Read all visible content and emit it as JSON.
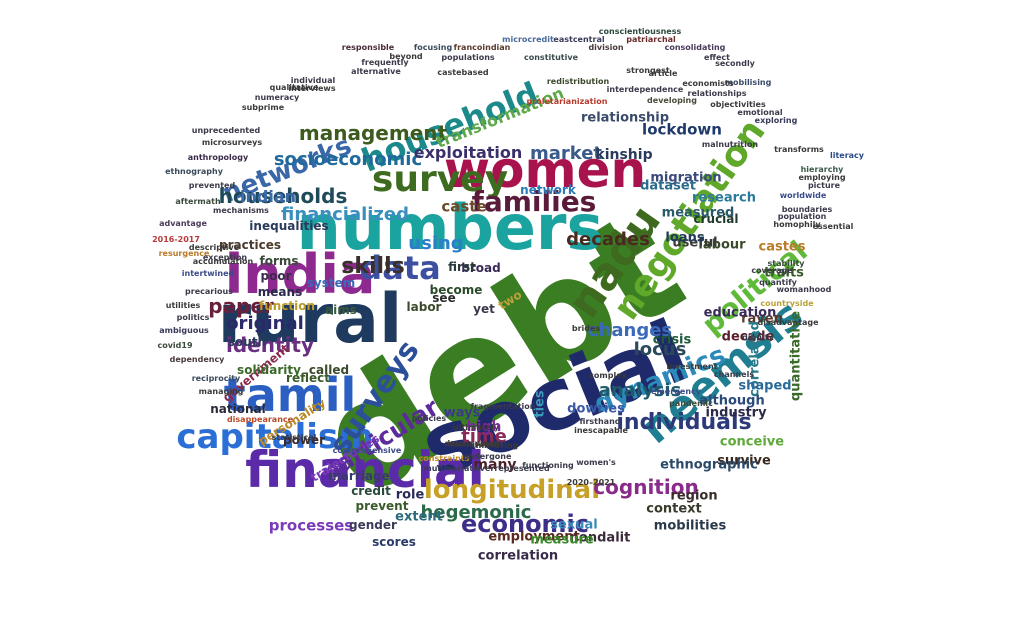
{
  "words": [
    {
      "t": "debt",
      "c": "#3b7d23"
    },
    {
      "t": "social",
      "c": "#1f2a6b"
    },
    {
      "t": "financial",
      "c": "#5b2aa8"
    },
    {
      "t": "numbers",
      "c": "#1ba3a0"
    },
    {
      "t": "women",
      "c": "#a8124d"
    },
    {
      "t": "rural",
      "c": "#1e3a5f"
    },
    {
      "t": "india",
      "c": "#8e2a8f"
    },
    {
      "t": "tamil",
      "c": "#2c5fc2"
    },
    {
      "t": "household",
      "c": "#1c8a8a"
    },
    {
      "t": "negotiation",
      "c": "#5fa82a"
    },
    {
      "t": "neemsis",
      "c": "#1f7e91"
    },
    {
      "t": "survey",
      "c": "#3d6b1f"
    },
    {
      "t": "capitalism",
      "c": "#2b6fd6"
    },
    {
      "t": "surveys",
      "c": "#2c4f9a"
    },
    {
      "t": "nadu",
      "c": "#3d6a1f"
    },
    {
      "t": "data",
      "c": "#3c4fa0"
    },
    {
      "t": "political",
      "c": "#5fba3a"
    },
    {
      "t": "longitudinal",
      "c": "#c7a127"
    },
    {
      "t": "dynamics",
      "c": "#2b8ab9"
    },
    {
      "t": "particular",
      "c": "#5b2a9b"
    },
    {
      "t": "networks",
      "c": "#3a67a8"
    },
    {
      "t": "families",
      "c": "#5a1a3a"
    },
    {
      "t": "economic",
      "c": "#3d2e88"
    },
    {
      "t": "management",
      "c": "#3d5b1f"
    },
    {
      "t": "skills",
      "c": "#3a2f2a"
    },
    {
      "t": "identity",
      "c": "#6a2f80"
    },
    {
      "t": "individuals",
      "c": "#2c3a7a"
    },
    {
      "t": "financialized",
      "c": "#3a8fbf"
    },
    {
      "t": "socioeconomic",
      "c": "#1f6a9b"
    },
    {
      "t": "households",
      "c": "#1f4a5a"
    },
    {
      "t": "cognition",
      "c": "#8a2a8a"
    },
    {
      "t": "hegemonic",
      "c": "#2a6a4a"
    },
    {
      "t": "paper",
      "c": "#6a1f3a"
    },
    {
      "t": "original",
      "c": "#2a2a6a"
    },
    {
      "t": "analysis",
      "c": "#1f5a6a"
    },
    {
      "t": "changes",
      "c": "#3a6ab9"
    },
    {
      "t": "decades",
      "c": "#4a2a1f"
    },
    {
      "t": "market",
      "c": "#3a5a8a"
    },
    {
      "t": "using",
      "c": "#2b7fc9"
    },
    {
      "t": "indian",
      "c": "#3a6aa8"
    },
    {
      "t": "exploitation",
      "c": "#3a2f6a"
    },
    {
      "t": "transformation",
      "c": "#5fa84a"
    },
    {
      "t": "lockdown",
      "c": "#1f3a6a"
    },
    {
      "t": "relationship",
      "c": "#3a4a6a"
    },
    {
      "t": "kinship",
      "c": "#2a3a5a"
    },
    {
      "t": "migration",
      "c": "#3a4a7a"
    },
    {
      "t": "dataset",
      "c": "#2a6a8a"
    },
    {
      "t": "research",
      "c": "#2a7a9a"
    },
    {
      "t": "measured",
      "c": "#2a5a6a"
    },
    {
      "t": "labour",
      "c": "#3a4a2a"
    },
    {
      "t": "crucial",
      "c": "#1f3a2a"
    },
    {
      "t": "useful",
      "c": "#3a3a3a"
    },
    {
      "t": "loans",
      "c": "#1f3a5a"
    },
    {
      "t": "caste",
      "c": "#6a4a2a"
    },
    {
      "t": "castes",
      "c": "#b97a2a"
    },
    {
      "t": "traits",
      "c": "#3a5a2a"
    },
    {
      "t": "raven",
      "c": "#5a3a2a"
    },
    {
      "t": "education",
      "c": "#3a2a5a"
    },
    {
      "t": "decade",
      "c": "#5a1f2a"
    },
    {
      "t": "crisis",
      "c": "#1f5a3a"
    },
    {
      "t": "locus",
      "c": "#2a4a5a"
    },
    {
      "t": "correlated",
      "c": "#2a7a8a"
    },
    {
      "t": "quantitative",
      "c": "#3a6a2a"
    },
    {
      "t": "shaped",
      "c": "#2a6a9a"
    },
    {
      "t": "industry",
      "c": "#2a2a4a"
    },
    {
      "t": "dowries",
      "c": "#3a5aa8"
    },
    {
      "t": "time",
      "c": "#8a2a5a"
    },
    {
      "t": "ties",
      "c": "#3a9ab9"
    },
    {
      "t": "high",
      "c": "#7a2a9a"
    },
    {
      "t": "ways",
      "c": "#3a3a8a"
    },
    {
      "t": "many",
      "c": "#4a1f2a"
    },
    {
      "t": "conceive",
      "c": "#5fa83a"
    },
    {
      "t": "survive",
      "c": "#3a2a1f"
    },
    {
      "t": "ethnographic",
      "c": "#2a4a6a"
    },
    {
      "t": "region",
      "c": "#3a2a2a"
    },
    {
      "t": "context",
      "c": "#3a3a2a"
    },
    {
      "t": "mobilities",
      "c": "#2a3a4a"
    },
    {
      "t": "nondalit",
      "c": "#3a2a3a"
    },
    {
      "t": "role",
      "c": "#2a2a5a"
    },
    {
      "t": "extent",
      "c": "#2a6a7a"
    },
    {
      "t": "processes",
      "c": "#7a3ab9"
    },
    {
      "t": "correlation",
      "c": "#3a2a4a"
    },
    {
      "t": "employment",
      "c": "#5a2a1f"
    },
    {
      "t": "measure",
      "c": "#3a8a2a"
    },
    {
      "t": "sexual",
      "c": "#3a8ab9"
    },
    {
      "t": "scores",
      "c": "#2a3a6a"
    },
    {
      "t": "gender",
      "c": "#3a3a5a"
    },
    {
      "t": "prevent",
      "c": "#3a5a2a"
    },
    {
      "t": "credit",
      "c": "#2a4a3a"
    },
    {
      "t": "trajectories",
      "c": "#7a3ab9"
    },
    {
      "t": "marriage",
      "c": "#3a3a6a"
    },
    {
      "t": "power",
      "c": "#3a2a2a"
    },
    {
      "t": "personality",
      "c": "#b9892a"
    },
    {
      "t": "national",
      "c": "#2a2a3a"
    },
    {
      "t": "government",
      "c": "#8a2a4a"
    },
    {
      "t": "reflect",
      "c": "#3a5a2a"
    },
    {
      "t": "called",
      "c": "#3a4a2a"
    },
    {
      "t": "solidarity",
      "c": "#3a6a2a"
    },
    {
      "t": "south",
      "c": "#2a3a5a"
    },
    {
      "t": "forms",
      "c": "#3a4a3a"
    },
    {
      "t": "poor",
      "c": "#3a2a4a"
    },
    {
      "t": "practices",
      "c": "#4a3a2a"
    },
    {
      "t": "inequalities",
      "c": "#2a3a5a"
    },
    {
      "t": "means",
      "c": "#2a2a4a"
    },
    {
      "t": "function",
      "c": "#b99a2a"
    },
    {
      "t": "system",
      "c": "#3a6ab9"
    },
    {
      "t": "aims",
      "c": "#3a5a3a"
    },
    {
      "t": "labor",
      "c": "#3a4a2a"
    },
    {
      "t": "become",
      "c": "#2a4a2a"
    },
    {
      "t": "broad",
      "c": "#3a2a5a"
    },
    {
      "t": "first",
      "c": "#2a3a3a"
    },
    {
      "t": "yet",
      "c": "#3a3a4a"
    },
    {
      "t": "see",
      "c": "#2a2a2a"
    },
    {
      "t": "two",
      "c": "#b9a23a"
    },
    {
      "t": "network",
      "c": "#2a7ab9"
    },
    {
      "t": "although",
      "c": "#2a4a7a"
    },
    {
      "t": "hierarchy",
      "c": "#3a5a4a"
    },
    {
      "t": "literacy",
      "c": "#2a4a8a"
    },
    {
      "t": "microcredit",
      "c": "#4a6a9a"
    },
    {
      "t": "conscientiousness",
      "c": "#2a4a3a"
    },
    {
      "t": "patriarchal",
      "c": "#6a2a2a"
    },
    {
      "t": "responsible",
      "c": "#4a2a3a"
    },
    {
      "t": "focusing",
      "c": "#3a4a5a"
    },
    {
      "t": "francoindian",
      "c": "#5a3a2a"
    },
    {
      "t": "eastcentral",
      "c": "#3a3a5a"
    },
    {
      "t": "division",
      "c": "#4a3a3a"
    },
    {
      "t": "constitutive",
      "c": "#3a4a4a"
    },
    {
      "t": "consolidating",
      "c": "#4a3a5a"
    },
    {
      "t": "proletarianization",
      "c": "#b93a2a"
    },
    {
      "t": "redistribution",
      "c": "#3a4a2a"
    },
    {
      "t": "interdependence",
      "c": "#3a3a4a"
    },
    {
      "t": "developing",
      "c": "#4a4a3a"
    },
    {
      "t": "mobilising",
      "c": "#3a4a6a"
    },
    {
      "t": "exploring",
      "c": "#3a3a5a"
    },
    {
      "t": "anthropology",
      "c": "#3a2a4a"
    },
    {
      "t": "ethnography",
      "c": "#3a4a5a"
    },
    {
      "t": "prevented",
      "c": "#3a3a4a"
    },
    {
      "t": "aftermath",
      "c": "#3a4a3a"
    },
    {
      "t": "advantage",
      "c": "#4a3a5a"
    },
    {
      "t": "2016-2017",
      "c": "#b93a3a"
    },
    {
      "t": "resurgence",
      "c": "#b97a2a"
    },
    {
      "t": "intertwined",
      "c": "#3a4a8a"
    },
    {
      "t": "precarious",
      "c": "#3a3a4a"
    },
    {
      "t": "utilities",
      "c": "#3a3a3a"
    },
    {
      "t": "politics",
      "c": "#3a3a4a"
    },
    {
      "t": "ambiguous",
      "c": "#3a3a5a"
    },
    {
      "t": "covid19",
      "c": "#3a4a3a"
    },
    {
      "t": "dependency",
      "c": "#4a3a3a"
    },
    {
      "t": "reciprocity",
      "c": "#3a4a5a"
    },
    {
      "t": "managing",
      "c": "#3a3a3a"
    },
    {
      "t": "disappearance",
      "c": "#b94a2a"
    },
    {
      "t": "statistical",
      "c": "#3a3a4a"
    },
    {
      "t": "comprehensive",
      "c": "#3a4a8a"
    },
    {
      "t": "overrepresented",
      "c": "#3a3a4a"
    },
    {
      "t": "constraints",
      "c": "#b98a2a"
    },
    {
      "t": "multivariate",
      "c": "#3a3a5a"
    },
    {
      "t": "2020–2021",
      "c": "#3a3a3a"
    },
    {
      "t": "women's",
      "c": "#3a3a4a"
    },
    {
      "t": "development",
      "c": "#4a3a3a"
    },
    {
      "t": "inescapable",
      "c": "#3a3a3a"
    },
    {
      "t": "firsthand",
      "c": "#3a3a4a"
    },
    {
      "t": "pandemic",
      "c": "#3a4a3a"
    },
    {
      "t": "emergency",
      "c": "#3a4a8a"
    },
    {
      "t": "channels",
      "c": "#3a3a4a"
    },
    {
      "t": "investment",
      "c": "#3a3a3a"
    },
    {
      "t": "countryside",
      "c": "#b9a23a"
    },
    {
      "t": "womanhood",
      "c": "#3a3a4a"
    },
    {
      "t": "disadvantage",
      "c": "#3a3a3a"
    },
    {
      "t": "quantify",
      "c": "#3a3a4a"
    },
    {
      "t": "stability",
      "c": "#3a4a3a"
    },
    {
      "t": "coverage",
      "c": "#3a3a4a"
    },
    {
      "t": "brides",
      "c": "#3a3a3a"
    },
    {
      "t": "dignity",
      "c": "#3a3a4a"
    },
    {
      "t": "complex",
      "c": "#3a3a3a"
    },
    {
      "t": "fragmentation",
      "c": "#3a3a4a"
    },
    {
      "t": "ultimately",
      "c": "#3a3a3a"
    },
    {
      "t": "policies",
      "c": "#3a3a4a"
    },
    {
      "t": "favourable",
      "c": "#3a3a3a"
    },
    {
      "t": "undergone",
      "c": "#3a3a4a"
    },
    {
      "t": "mirroring",
      "c": "#3a3a3a"
    },
    {
      "t": "functioning",
      "c": "#3a3a4a"
    },
    {
      "t": "homophily",
      "c": "#3a3a3a"
    },
    {
      "t": "malnutrition",
      "c": "#3a3a4a"
    },
    {
      "t": "transforms",
      "c": "#3a3a3a"
    },
    {
      "t": "worldwide",
      "c": "#3a4a8a"
    },
    {
      "t": "boundaries",
      "c": "#3a3a4a"
    },
    {
      "t": "essential",
      "c": "#3a3a3a"
    },
    {
      "t": "population",
      "c": "#3a3a4a"
    },
    {
      "t": "subprime",
      "c": "#3a3a3a"
    },
    {
      "t": "unprecedented",
      "c": "#3a3a4a"
    },
    {
      "t": "microsurveys",
      "c": "#3a3a3a"
    },
    {
      "t": "mechanisms",
      "c": "#3a3a4a"
    },
    {
      "t": "descriptive",
      "c": "#3a3a3a"
    },
    {
      "t": "exception",
      "c": "#3a3a4a"
    },
    {
      "t": "accumulation",
      "c": "#3a3a3a"
    },
    {
      "t": "individual",
      "c": "#3a3a4a"
    },
    {
      "t": "qualitative",
      "c": "#3a3a3a"
    },
    {
      "t": "numeracy",
      "c": "#3a3a4a"
    },
    {
      "t": "interviews",
      "c": "#3a3a3a"
    },
    {
      "t": "frequently",
      "c": "#3a3a4a"
    },
    {
      "t": "castebased",
      "c": "#3a3a3a"
    },
    {
      "t": "alternative",
      "c": "#3a3a4a"
    },
    {
      "t": "beyond",
      "c": "#3a3a3a"
    },
    {
      "t": "populations",
      "c": "#3a3a4a"
    },
    {
      "t": "objectivities",
      "c": "#3a3a3a"
    },
    {
      "t": "emotional",
      "c": "#3a3a4a"
    },
    {
      "t": "economists",
      "c": "#3a3a3a"
    },
    {
      "t": "secondly",
      "c": "#3a3a4a"
    },
    {
      "t": "article",
      "c": "#3a3a3a"
    },
    {
      "t": "effect",
      "c": "#3a3a4a"
    },
    {
      "t": "employing",
      "c": "#3a3a3a"
    },
    {
      "t": "picture",
      "c": "#3a3a4a"
    },
    {
      "t": "strongest",
      "c": "#3a3a3a"
    },
    {
      "t": "relationships",
      "c": "#3a3a4a"
    }
  ]
}
